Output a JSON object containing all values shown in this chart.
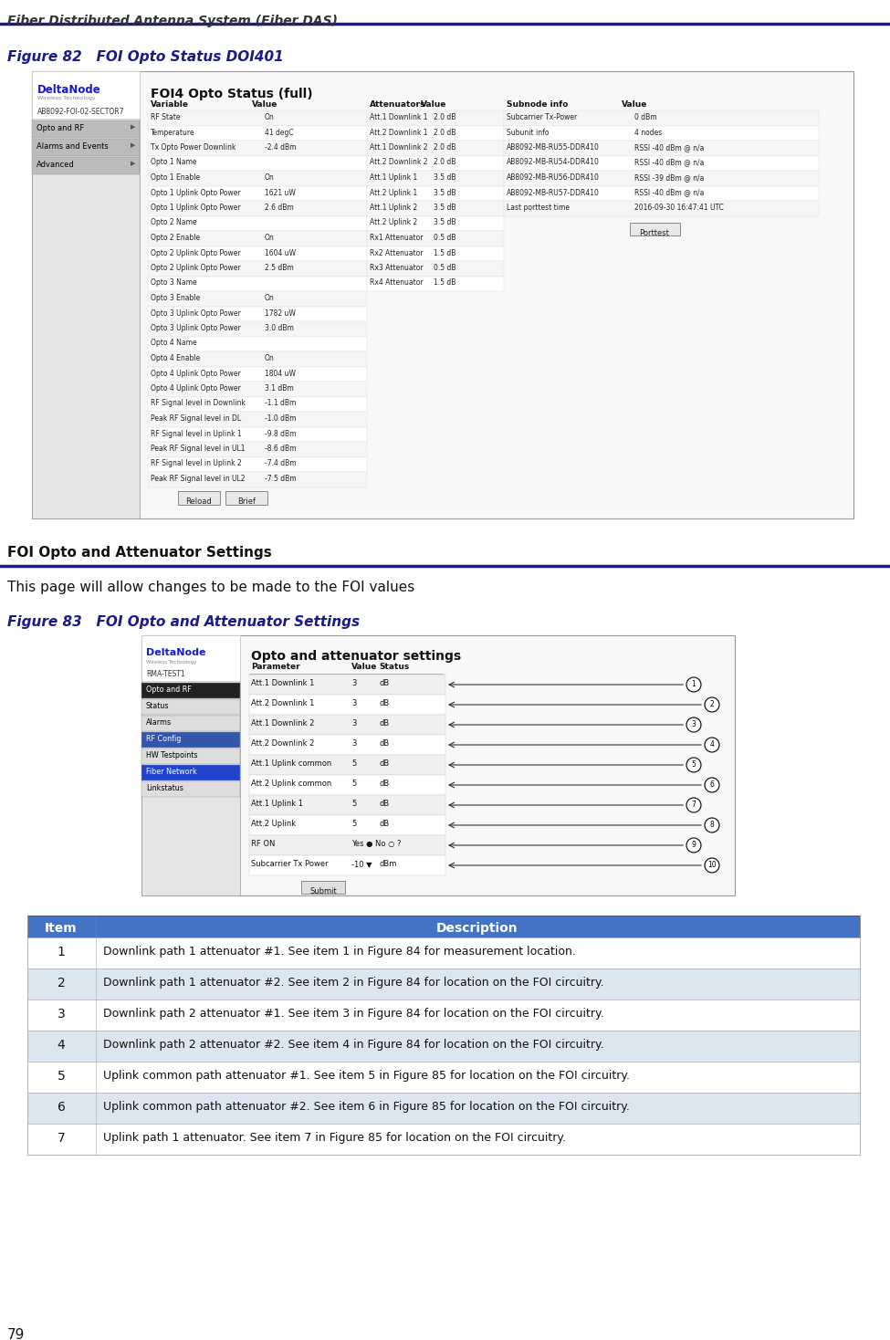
{
  "header_text": "Fiber Distributed Antenna System (Fiber DAS)",
  "header_line_color": "#1a1a8c",
  "header_font_color": "#333333",
  "footer_text": "79",
  "fig82_label": "Figure 82",
  "fig82_title": "   FOI Opto Status DOI401",
  "fig83_label": "Figure 83",
  "fig83_title": "   FOI Opto and Attenuator Settings",
  "section_heading": "FOI Opto and Attenuator Settings",
  "section_desc": "This page will allow changes to be made to the FOI values",
  "blue_heading_color": "#1a1a8c",
  "table_header_bg": "#4472C4",
  "table_header_font": "#FFFFFF",
  "table_row_alt1": "#FFFFFF",
  "table_row_alt2": "#dce6f1",
  "table_items": [
    [
      "1",
      "Downlink path 1 attenuator #1. See item 1 in Figure 84 for measurement location."
    ],
    [
      "2",
      "Downlink path 1 attenuator #2. See item 2 in Figure 84 for location on the FOI circuitry."
    ],
    [
      "3",
      "Downlink path 2 attenuator #1. See item 3 in Figure 84 for location on the FOI circuitry."
    ],
    [
      "4",
      "Downlink path 2 attenuator #2. See item 4 in Figure 84 for location on the FOI circuitry."
    ],
    [
      "5",
      "Uplink common path attenuator #1. See item 5 in Figure 85 for location on the FOI circuitry."
    ],
    [
      "6",
      "Uplink common path attenuator #2. See item 6 in Figure 85 for location on the FOI circuitry."
    ],
    [
      "7",
      "Uplink path 1 attenuator. See item 7 in Figure 85 for location on the FOI circuitry."
    ]
  ],
  "var_table": [
    [
      "RF State",
      "On"
    ],
    [
      "Temperature",
      "41 degC"
    ],
    [
      "Tx Opto Power Downlink",
      "-2.4 dBm"
    ],
    [
      "Opto 1 Name",
      ""
    ],
    [
      "Opto 1 Enable",
      "On"
    ],
    [
      "Opto 1 Uplink Opto Power",
      "1621 uW"
    ],
    [
      "Opto 1 Uplink Opto Power",
      "2.6 dBm"
    ],
    [
      "Opto 2 Name",
      ""
    ],
    [
      "Opto 2 Enable",
      "On"
    ],
    [
      "Opto 2 Uplink Opto Power",
      "1604 uW"
    ],
    [
      "Opto 2 Uplink Opto Power",
      "2.5 dBm"
    ],
    [
      "Opto 3 Name",
      ""
    ],
    [
      "Opto 3 Enable",
      "On"
    ],
    [
      "Opto 3 Uplink Opto Power",
      "1782 uW"
    ],
    [
      "Opto 3 Uplink Opto Power",
      "3.0 dBm"
    ],
    [
      "Opto 4 Name",
      ""
    ],
    [
      "Opto 4 Enable",
      "On"
    ],
    [
      "Opto 4 Uplink Opto Power",
      "1804 uW"
    ],
    [
      "Opto 4 Uplink Opto Power",
      "3.1 dBm"
    ],
    [
      "RF Signal level in Downlink",
      "-1.1 dBm"
    ],
    [
      "Peak RF Signal level in DL",
      "-1.0 dBm"
    ],
    [
      "RF Signal level in Uplink 1",
      "-9.8 dBm"
    ],
    [
      "Peak RF Signal level in UL1",
      "-8.6 dBm"
    ],
    [
      "RF Signal level in Uplink 2",
      "-7.4 dBm"
    ],
    [
      "Peak RF Signal level in UL2",
      "-7.5 dBm"
    ]
  ],
  "att_table": [
    [
      "Att.1 Downlink 1",
      "2.0 dB"
    ],
    [
      "Att.2 Downlink 1",
      "2.0 dB"
    ],
    [
      "Att.1 Downlink 2",
      "2.0 dB"
    ],
    [
      "Att.2 Downlink 2",
      "2.0 dB"
    ],
    [
      "Att.1 Uplink 1",
      "3.5 dB"
    ],
    [
      "Att.2 Uplink 1",
      "3.5 dB"
    ],
    [
      "Att.1 Uplink 2",
      "3.5 dB"
    ],
    [
      "Att.2 Uplink 2",
      "3.5 dB"
    ],
    [
      "Rx1 Attenuator",
      "0.5 dB"
    ],
    [
      "Rx2 Attenuator",
      "1.5 dB"
    ],
    [
      "Rx3 Attenuator",
      "0.5 dB"
    ],
    [
      "Rx4 Attenuator",
      "1.5 dB"
    ]
  ],
  "subnode_table": [
    [
      "Subcarrier Tx-Power",
      "0 dBm"
    ],
    [
      "Subunit info",
      "4 nodes"
    ],
    [
      "AB8092-MB-RU55-DDR410",
      "RSSI -40 dBm @ n/a"
    ],
    [
      "AB8092-MB-RU54-DDR410",
      "RSSI -40 dBm @ n/a"
    ],
    [
      "AB8092-MB-RU56-DDR410",
      "RSSI -39 dBm @ n/a"
    ],
    [
      "AB8092-MB-RU57-DDR410",
      "RSSI -40 dBm @ n/a"
    ],
    [
      "Last porttest time",
      "2016-09-30 16:47:41 UTC"
    ]
  ],
  "fig83_params": [
    [
      "Att.1 Downlink 1",
      "3",
      "dB"
    ],
    [
      "Att.2 Downlink 1",
      "3",
      "dB"
    ],
    [
      "Att.1 Downlink 2",
      "3",
      "dB"
    ],
    [
      "Att.2 Downlink 2",
      "3",
      "dB"
    ],
    [
      "Att.1 Uplink common",
      "5",
      "dB"
    ],
    [
      "Att.2 Uplink common",
      "5",
      "dB"
    ],
    [
      "Att.1 Uplink 1",
      "5",
      "dB"
    ],
    [
      "Att.2 Uplink",
      "5",
      "dB"
    ],
    [
      "RF ON",
      "Yes ● No ○ ?",
      ""
    ],
    [
      "Subcarrier Tx Power",
      "-10 ▼",
      "dBm"
    ]
  ],
  "fig83_menu": [
    [
      "Opto and RF",
      "#222222",
      "#ffffff"
    ],
    [
      "Status",
      "#dddddd",
      "#000000"
    ],
    [
      "Alarms",
      "#dddddd",
      "#000000"
    ],
    [
      "RF Config",
      "#3355aa",
      "#ffffff"
    ],
    [
      "HW Testpoints",
      "#dddddd",
      "#000000"
    ],
    [
      "Fiber Network",
      "#2244cc",
      "#ffffff"
    ],
    [
      "Linkstatus",
      "#dddddd",
      "#000000"
    ]
  ]
}
